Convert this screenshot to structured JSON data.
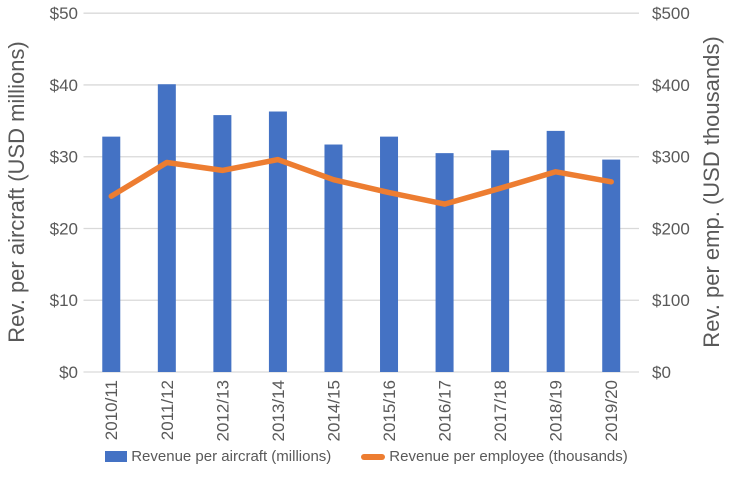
{
  "chart_data": {
    "type": "bar",
    "subtype": "bar-line-combo",
    "title": "",
    "categories": [
      "2010/11",
      "2011/12",
      "2012/13",
      "2013/14",
      "2014/15",
      "2015/16",
      "2016/17",
      "2017/18",
      "2018/19",
      "2019/20"
    ],
    "series": [
      {
        "name": "Revenue per aircraft (millions)",
        "kind": "bar",
        "axis": "left",
        "color": "#4472C4",
        "values": [
          32.8,
          40.1,
          35.8,
          36.3,
          31.7,
          32.8,
          30.5,
          30.9,
          33.6,
          29.6
        ]
      },
      {
        "name": "Revenue per employee (thousands)",
        "kind": "line",
        "axis": "right",
        "color": "#ED7D31",
        "values": [
          245,
          292,
          281,
          296,
          268,
          250,
          234,
          256,
          279,
          265
        ]
      }
    ],
    "left_axis": {
      "title": "Rev. per aircraft (USD millions)",
      "min": 0,
      "max": 50,
      "tick_step": 10,
      "tick_labels": [
        "$0",
        "$10",
        "$20",
        "$30",
        "$40",
        "$50"
      ]
    },
    "right_axis": {
      "title": "Rev. per emp. (USD thousands)",
      "min": 0,
      "max": 500,
      "tick_step": 100,
      "tick_labels": [
        "$0",
        "$100",
        "$200",
        "$300",
        "$400",
        "$500"
      ]
    },
    "grid": true,
    "gridline_color": "#D9D9D9",
    "text_color": "#595959",
    "legend_position": "bottom"
  }
}
